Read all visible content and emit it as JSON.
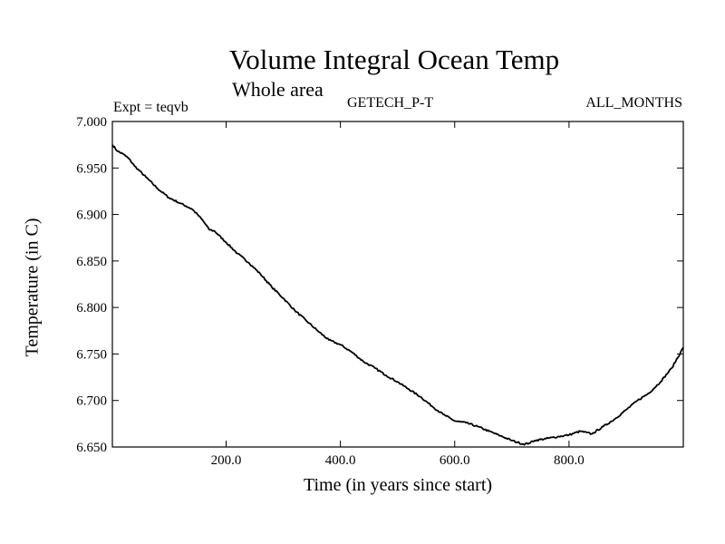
{
  "header": {
    "title": "Volume Integral Ocean Temp",
    "subtitle": "Whole area",
    "expt": "Expt = teqvb",
    "dataset": "GETECH_P-T",
    "months": "ALL_MONTHS"
  },
  "chart_data": {
    "type": "line",
    "title": "Volume Integral Ocean Temp",
    "subtitle": "Whole area",
    "xlabel": "Time (in years since start)",
    "ylabel": "Temperature (in C)",
    "xlim": [
      1,
      1000
    ],
    "ylim": [
      6.65,
      7.0
    ],
    "x_ticks": [
      200,
      400,
      600,
      800
    ],
    "x_tick_labels": [
      "200.0",
      "400.0",
      "600.0",
      "800.0"
    ],
    "y_ticks": [
      6.65,
      6.7,
      6.75,
      6.8,
      6.85,
      6.9,
      6.95,
      7.0
    ],
    "y_tick_labels": [
      "6.650",
      "6.700",
      "6.750",
      "6.800",
      "6.850",
      "6.900",
      "6.950",
      "7.000"
    ],
    "grid": false,
    "legend": "none",
    "series": [
      {
        "x": [
          1,
          10,
          20,
          30,
          40,
          60,
          80,
          100,
          120,
          140,
          150,
          160,
          170,
          180,
          200,
          220,
          240,
          260,
          280,
          300,
          320,
          340,
          360,
          380,
          400,
          420,
          440,
          460,
          480,
          500,
          520,
          540,
          560,
          580,
          600,
          620,
          640,
          660,
          680,
          700,
          710,
          720,
          730,
          740,
          760,
          780,
          800,
          820,
          840,
          860,
          880,
          900,
          920,
          940,
          960,
          980,
          1000
        ],
        "values": [
          6.975,
          6.968,
          6.965,
          6.96,
          6.952,
          6.94,
          6.928,
          6.918,
          6.912,
          6.906,
          6.9,
          6.893,
          6.884,
          6.882,
          6.87,
          6.858,
          6.848,
          6.836,
          6.822,
          6.81,
          6.797,
          6.786,
          6.775,
          6.765,
          6.76,
          6.752,
          6.742,
          6.735,
          6.727,
          6.72,
          6.712,
          6.704,
          6.694,
          6.685,
          6.678,
          6.676,
          6.672,
          6.667,
          6.662,
          6.657,
          6.655,
          6.653,
          6.654,
          6.657,
          6.659,
          6.661,
          6.663,
          6.667,
          6.664,
          6.672,
          6.68,
          6.69,
          6.7,
          6.708,
          6.72,
          6.735,
          6.757
        ]
      }
    ]
  }
}
